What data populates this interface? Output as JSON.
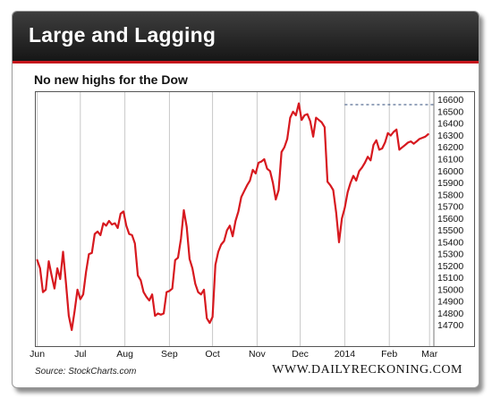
{
  "banner": {
    "title": "Large and Lagging"
  },
  "chart_data": {
    "type": "line",
    "title": "No new highs for the Dow",
    "xlabel": "",
    "ylabel": "",
    "x_tick_labels": [
      "Jun",
      "Jul",
      "Aug",
      "Sep",
      "Oct",
      "Nov",
      "Dec",
      "2014",
      "Feb",
      "Mar"
    ],
    "x_tick_positions": [
      0,
      30,
      61,
      92,
      122,
      153,
      183,
      214,
      245,
      273
    ],
    "y_tick_labels": [
      "16600",
      "16500",
      "16400",
      "16300",
      "16200",
      "16100",
      "16000",
      "15900",
      "15800",
      "15700",
      "15600",
      "15500",
      "15400",
      "15300",
      "15200",
      "15100",
      "15000",
      "14900",
      "14800",
      "14700"
    ],
    "ylim": [
      14600,
      16620
    ],
    "xlim": [
      -1,
      276
    ],
    "grid": "vertical",
    "series": [
      {
        "color": "#d7191f",
        "x": [
          0,
          2,
          4,
          6,
          8,
          10,
          12,
          14,
          16,
          18,
          20,
          22,
          24,
          26,
          28,
          30,
          32,
          34,
          36,
          38,
          40,
          42,
          44,
          46,
          48,
          50,
          52,
          54,
          56,
          58,
          60,
          62,
          64,
          66,
          68,
          70,
          72,
          74,
          76,
          78,
          80,
          82,
          84,
          86,
          88,
          90,
          92,
          94,
          96,
          98,
          100,
          102,
          104,
          106,
          108,
          110,
          112,
          114,
          116,
          118,
          120,
          122,
          124,
          126,
          128,
          130,
          132,
          134,
          136,
          138,
          140,
          142,
          144,
          146,
          148,
          150,
          152,
          154,
          156,
          158,
          160,
          162,
          164,
          166,
          168,
          170,
          172,
          174,
          176,
          178,
          180,
          182,
          184,
          186,
          188,
          190,
          192,
          194,
          196,
          198,
          200,
          202,
          204,
          206,
          208,
          210,
          212,
          214,
          216,
          218,
          220,
          222,
          224,
          226,
          228,
          230,
          232,
          234,
          236,
          238,
          240,
          242,
          244,
          246,
          248,
          250,
          252,
          254,
          256,
          258,
          260,
          262,
          264,
          266,
          268,
          270,
          272
        ],
        "values": [
          15250,
          15180,
          14980,
          15000,
          15240,
          15120,
          15010,
          15180,
          15090,
          15320,
          15060,
          14780,
          14660,
          14820,
          15000,
          14920,
          14960,
          15150,
          15300,
          15310,
          15470,
          15490,
          15460,
          15560,
          15540,
          15580,
          15550,
          15560,
          15520,
          15640,
          15660,
          15540,
          15470,
          15460,
          15390,
          15120,
          15080,
          14980,
          14940,
          14910,
          14960,
          14780,
          14800,
          14790,
          14800,
          14980,
          14990,
          15010,
          15250,
          15270,
          15430,
          15670,
          15530,
          15260,
          15180,
          15050,
          14980,
          14960,
          15000,
          14760,
          14720,
          14770,
          15210,
          15320,
          15380,
          15410,
          15500,
          15540,
          15450,
          15580,
          15660,
          15780,
          15830,
          15880,
          15920,
          16010,
          15980,
          16070,
          16080,
          16100,
          16020,
          16000,
          15900,
          15760,
          15840,
          16160,
          16200,
          16270,
          16450,
          16500,
          16470,
          16570,
          16430,
          16470,
          16480,
          16420,
          16290,
          16450,
          16430,
          16410,
          16370,
          15910,
          15880,
          15840,
          15650,
          15400,
          15600,
          15690,
          15820,
          15900,
          15960,
          15920,
          16000,
          16030,
          16070,
          16120,
          16090,
          16220,
          16260,
          16180,
          16190,
          16240,
          16320,
          16300,
          16330,
          16350,
          16180,
          16200,
          16220,
          16240,
          16250,
          16230,
          16250,
          16270,
          16280,
          16290,
          16310
        ]
      }
    ],
    "reference_line": {
      "value": 16560,
      "from_x": 214,
      "style": "dashed",
      "color": "#2c4a7a"
    }
  },
  "footer": {
    "source": "Source: StockCharts.com",
    "brand": "WWW.DAILYRECKONING.COM"
  }
}
